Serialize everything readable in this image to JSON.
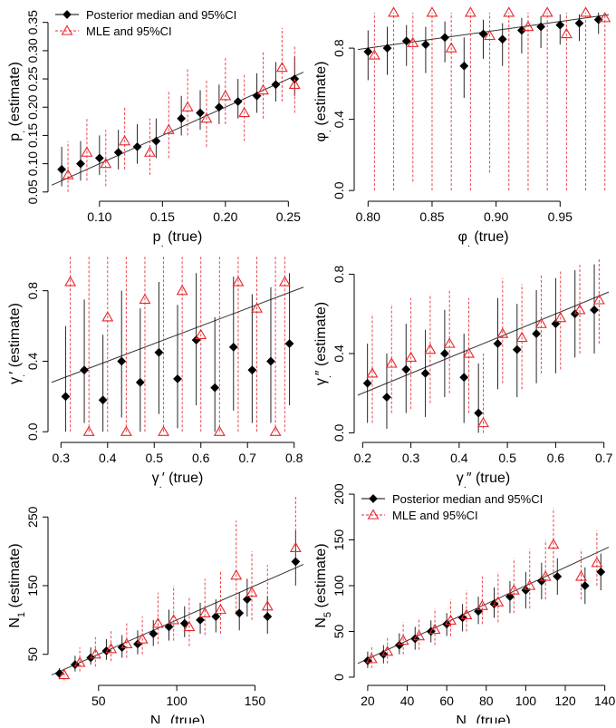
{
  "chart_data": [
    {
      "type": "scatter",
      "xlabel": {
        "main": "p",
        "sub": ".",
        "rest": " (true)"
      },
      "ylabel": {
        "main": "p",
        "sub": ".",
        "rest": " (estimate)"
      },
      "xlim": [
        0.062,
        0.262
      ],
      "xticks": [
        {
          "value": 0.1,
          "label": "0.10"
        },
        0.15,
        {
          "value": 0.2,
          "label": "0.20"
        },
        0.25
      ],
      "ylim": [
        0.04,
        0.38
      ],
      "yticks": [
        0.05,
        {
          "value": 0.1,
          "label": "0.10"
        },
        0.15,
        {
          "value": 0.2,
          "label": "0.20"
        },
        0.25,
        {
          "value": 0.3,
          "label": "0.30"
        },
        0.35
      ],
      "legend": "top-left",
      "series": [
        {
          "name": "Posterior median and 95%CI",
          "color": "#000000",
          "marker": "diamond",
          "linestyle": "solid",
          "x": [
            0.07,
            0.085,
            0.1,
            0.115,
            0.13,
            0.145,
            0.165,
            0.18,
            0.195,
            0.21,
            0.225,
            0.24,
            0.255
          ],
          "values": [
            0.09,
            0.1,
            0.11,
            0.12,
            0.13,
            0.14,
            0.18,
            0.19,
            0.2,
            0.21,
            0.22,
            0.24,
            0.25
          ],
          "lower": [
            0.06,
            0.07,
            0.08,
            0.09,
            0.1,
            0.11,
            0.15,
            0.16,
            0.17,
            0.18,
            0.19,
            0.21,
            0.22
          ],
          "upper": [
            0.13,
            0.14,
            0.15,
            0.16,
            0.17,
            0.18,
            0.22,
            0.23,
            0.24,
            0.25,
            0.26,
            0.28,
            0.29
          ]
        },
        {
          "name": "MLE and 95%CI",
          "color": "#e8262b",
          "marker": "triangle",
          "linestyle": "dashed",
          "x": [
            0.075,
            0.09,
            0.105,
            0.12,
            0.14,
            0.155,
            0.17,
            0.185,
            0.2,
            0.215,
            0.23,
            0.245,
            0.255
          ],
          "values": [
            0.08,
            0.12,
            0.1,
            0.14,
            0.12,
            0.16,
            0.2,
            0.18,
            0.22,
            0.19,
            0.23,
            0.27,
            0.24
          ],
          "lower": [
            0.05,
            0.07,
            0.06,
            0.09,
            0.08,
            0.11,
            0.15,
            0.13,
            0.17,
            0.14,
            0.18,
            0.21,
            0.19
          ],
          "upper": [
            0.14,
            0.18,
            0.16,
            0.2,
            0.18,
            0.23,
            0.27,
            0.25,
            0.29,
            0.26,
            0.3,
            0.34,
            0.31
          ]
        }
      ]
    },
    {
      "type": "scatter",
      "xlabel": {
        "main": "φ",
        "sub": ".",
        "rest": " (true)"
      },
      "ylabel": {
        "main": "φ",
        "sub": ".",
        "rest": " (estimate)"
      },
      "xlim": [
        0.792,
        0.988
      ],
      "xticks": [
        {
          "value": 0.8,
          "label": "0.80"
        },
        0.85,
        {
          "value": 0.9,
          "label": "0.90"
        },
        0.95
      ],
      "ylim": [
        -0.04,
        1.04
      ],
      "yticks": [
        {
          "value": 0,
          "label": "0.0"
        },
        0.4,
        0.8
      ],
      "series": [
        {
          "color": "#000000",
          "marker": "diamond",
          "linestyle": "solid",
          "x": [
            0.8,
            0.815,
            0.83,
            0.845,
            0.86,
            0.875,
            0.89,
            0.905,
            0.92,
            0.935,
            0.95,
            0.965,
            0.98
          ],
          "values": [
            0.78,
            0.8,
            0.84,
            0.82,
            0.86,
            0.7,
            0.88,
            0.85,
            0.9,
            0.92,
            0.93,
            0.94,
            0.96
          ],
          "lower": [
            0.62,
            0.65,
            0.7,
            0.66,
            0.72,
            0.52,
            0.74,
            0.7,
            0.77,
            0.8,
            0.82,
            0.84,
            0.88
          ],
          "upper": [
            0.9,
            0.92,
            0.93,
            0.92,
            0.95,
            0.86,
            0.96,
            0.94,
            0.97,
            0.98,
            0.99,
            0.99,
            1
          ]
        },
        {
          "color": "#e8262b",
          "marker": "triangle",
          "linestyle": "dashed",
          "x": [
            0.805,
            0.82,
            0.835,
            0.85,
            0.865,
            0.88,
            0.895,
            0.91,
            0.925,
            0.94,
            0.955,
            0.97,
            0.985
          ],
          "values": [
            0.76,
            1,
            0.83,
            1,
            0.8,
            1,
            0.87,
            1,
            0.92,
            1,
            0.88,
            1,
            0.97
          ],
          "lower": [
            0,
            0,
            0.05,
            0,
            0,
            0,
            0.1,
            0,
            0,
            0,
            0,
            0,
            0
          ],
          "upper": [
            1,
            1,
            1,
            1,
            1,
            1,
            1,
            1,
            1,
            1,
            1,
            1,
            1
          ]
        }
      ]
    },
    {
      "type": "scatter",
      "xlabel": {
        "main": "γ",
        "sub": ".",
        "rest": "′ (true)"
      },
      "ylabel": {
        "main": "γ",
        "sub": ".",
        "rest": "′ (estimate)"
      },
      "xlim": [
        0.28,
        0.82
      ],
      "xticks": [
        0.3,
        0.4,
        0.5,
        0.6,
        0.7,
        0.8
      ],
      "ylim": [
        -0.04,
        1.04
      ],
      "yticks": [
        {
          "value": 0,
          "label": "0.0"
        },
        0.4,
        0.8
      ],
      "series": [
        {
          "color": "#000000",
          "marker": "diamond",
          "linestyle": "solid",
          "x": [
            0.31,
            0.35,
            0.39,
            0.43,
            0.47,
            0.51,
            0.55,
            0.59,
            0.63,
            0.67,
            0.71,
            0.75,
            0.79
          ],
          "values": [
            0.2,
            0.35,
            0.18,
            0.4,
            0.28,
            0.45,
            0.3,
            0.52,
            0.25,
            0.48,
            0.35,
            0.4,
            0.5
          ],
          "lower": [
            0,
            0.05,
            0,
            0.08,
            0,
            0.1,
            0.02,
            0.15,
            0,
            0.12,
            0.05,
            0.05,
            0.15
          ],
          "upper": [
            0.6,
            0.75,
            0.55,
            0.8,
            0.7,
            0.85,
            0.72,
            0.9,
            0.65,
            0.88,
            0.78,
            0.82,
            0.9
          ]
        },
        {
          "color": "#e8262b",
          "marker": "triangle",
          "linestyle": "dashed",
          "x": [
            0.32,
            0.36,
            0.4,
            0.44,
            0.48,
            0.52,
            0.56,
            0.6,
            0.64,
            0.68,
            0.72,
            0.76,
            0.78
          ],
          "values": [
            0.85,
            0,
            0.65,
            0,
            0.75,
            0,
            0.8,
            0.55,
            0,
            0.85,
            0.7,
            0,
            0.85
          ],
          "lower": [
            0,
            0,
            0,
            0,
            0,
            0,
            0,
            0,
            0,
            0,
            0,
            0,
            0
          ],
          "upper": [
            1,
            1,
            1,
            1,
            1,
            1,
            1,
            1,
            1,
            1,
            1,
            1,
            1
          ]
        }
      ]
    },
    {
      "type": "scatter",
      "xlabel": {
        "main": "γ",
        "sub": ".",
        "rest": "″ (true)"
      },
      "ylabel": {
        "main": "γ",
        "sub": ".",
        "rest": "″ (estimate)"
      },
      "xlim": [
        0.19,
        0.71
      ],
      "xticks": [
        0.2,
        0.3,
        0.4,
        0.5,
        0.6,
        0.7
      ],
      "ylim": [
        -0.03,
        0.93
      ],
      "yticks": [
        {
          "value": 0,
          "label": "0.0"
        },
        0.4,
        0.8
      ],
      "series": [
        {
          "color": "#000000",
          "marker": "diamond",
          "linestyle": "solid",
          "x": [
            0.21,
            0.25,
            0.29,
            0.33,
            0.37,
            0.41,
            0.44,
            0.48,
            0.52,
            0.56,
            0.6,
            0.64,
            0.68
          ],
          "values": [
            0.25,
            0.18,
            0.32,
            0.3,
            0.4,
            0.28,
            0.1,
            0.45,
            0.42,
            0.5,
            0.55,
            0.6,
            0.62
          ],
          "lower": [
            0.05,
            0.02,
            0.1,
            0.08,
            0.18,
            0.05,
            0,
            0.22,
            0.18,
            0.25,
            0.3,
            0.38,
            0.4
          ],
          "upper": [
            0.45,
            0.4,
            0.55,
            0.52,
            0.62,
            0.5,
            0.35,
            0.68,
            0.65,
            0.72,
            0.78,
            0.82,
            0.85
          ]
        },
        {
          "color": "#e8262b",
          "marker": "triangle",
          "linestyle": "dashed",
          "x": [
            0.22,
            0.26,
            0.3,
            0.34,
            0.38,
            0.42,
            0.45,
            0.49,
            0.53,
            0.57,
            0.61,
            0.65,
            0.69
          ],
          "values": [
            0.3,
            0.35,
            0.38,
            0.42,
            0.45,
            0.4,
            0.05,
            0.5,
            0.48,
            0.55,
            0.58,
            0.62,
            0.67
          ],
          "lower": [
            0.05,
            0.1,
            0.12,
            0.15,
            0.2,
            0.1,
            0,
            0.25,
            0.22,
            0.3,
            0.32,
            0.4,
            0.45
          ],
          "upper": [
            0.6,
            0.65,
            0.68,
            0.7,
            0.72,
            0.68,
            0.4,
            0.78,
            0.75,
            0.8,
            0.82,
            0.85,
            0.88
          ]
        }
      ]
    },
    {
      "type": "scatter",
      "xlabel": {
        "main": "N",
        "sub": "1",
        "rest": " (true)"
      },
      "ylabel": {
        "main": "N",
        "sub": "1",
        "rest": " (estimate)"
      },
      "xlim": [
        20,
        181
      ],
      "xticks": [
        50,
        100,
        150
      ],
      "ylim": [
        10,
        290
      ],
      "yticks": [
        50,
        150,
        250
      ],
      "series": [
        {
          "color": "#000000",
          "marker": "diamond",
          "linestyle": "solid",
          "x": [
            25,
            35,
            45,
            55,
            65,
            75,
            85,
            95,
            105,
            115,
            125,
            140,
            145,
            158,
            176
          ],
          "values": [
            22,
            35,
            45,
            55,
            60,
            65,
            80,
            90,
            95,
            100,
            105,
            110,
            130,
            105,
            185
          ],
          "lower": [
            15,
            25,
            35,
            42,
            45,
            50,
            62,
            70,
            75,
            80,
            82,
            85,
            105,
            80,
            150
          ],
          "upper": [
            30,
            48,
            60,
            72,
            78,
            85,
            100,
            115,
            120,
            125,
            130,
            140,
            160,
            135,
            230
          ]
        },
        {
          "color": "#e8262b",
          "marker": "triangle",
          "linestyle": "dashed",
          "x": [
            28,
            38,
            48,
            58,
            68,
            78,
            88,
            98,
            108,
            118,
            128,
            138,
            148,
            158,
            176
          ],
          "values": [
            20,
            38,
            50,
            58,
            65,
            72,
            95,
            100,
            90,
            110,
            115,
            165,
            140,
            120,
            205
          ],
          "lower": [
            12,
            25,
            32,
            40,
            45,
            50,
            65,
            70,
            62,
            78,
            80,
            110,
            100,
            85,
            150
          ],
          "upper": [
            32,
            60,
            75,
            85,
            95,
            105,
            140,
            150,
            135,
            160,
            170,
            245,
            200,
            180,
            280
          ]
        }
      ]
    },
    {
      "type": "scatter",
      "xlabel": {
        "main": "N",
        "sub": "5",
        "rest": " (true)"
      },
      "ylabel": {
        "main": "N",
        "sub": "5",
        "rest": " (estimate)"
      },
      "xlim": [
        15,
        142
      ],
      "xticks": [
        20,
        40,
        60,
        80,
        100,
        120,
        140
      ],
      "ylim": [
        -5,
        205
      ],
      "yticks": [
        0,
        50,
        100,
        150,
        200
      ],
      "legend": "top-left",
      "series": [
        {
          "name": "Posterior median and 95%CI",
          "color": "#000000",
          "marker": "diamond",
          "linestyle": "solid",
          "x": [
            20,
            28,
            36,
            44,
            52,
            60,
            68,
            76,
            84,
            92,
            100,
            108,
            116,
            130,
            138
          ],
          "values": [
            18,
            25,
            35,
            42,
            50,
            58,
            65,
            72,
            80,
            88,
            95,
            105,
            110,
            100,
            115
          ],
          "lower": [
            10,
            15,
            25,
            30,
            38,
            45,
            50,
            58,
            65,
            70,
            75,
            85,
            90,
            80,
            95
          ],
          "upper": [
            28,
            35,
            48,
            55,
            62,
            70,
            80,
            88,
            98,
            105,
            115,
            125,
            130,
            120,
            135
          ]
        },
        {
          "name": "MLE and 95%CI",
          "color": "#e8262b",
          "marker": "triangle",
          "linestyle": "dashed",
          "x": [
            22,
            30,
            38,
            46,
            54,
            62,
            70,
            78,
            86,
            94,
            102,
            110,
            114,
            128,
            136
          ],
          "values": [
            20,
            28,
            40,
            45,
            52,
            62,
            68,
            78,
            82,
            95,
            100,
            110,
            145,
            110,
            125
          ],
          "lower": [
            10,
            15,
            25,
            30,
            35,
            45,
            50,
            58,
            60,
            70,
            75,
            85,
            110,
            85,
            100
          ],
          "upper": [
            35,
            45,
            60,
            65,
            75,
            85,
            95,
            110,
            115,
            130,
            140,
            150,
            185,
            140,
            160
          ]
        }
      ]
    }
  ]
}
